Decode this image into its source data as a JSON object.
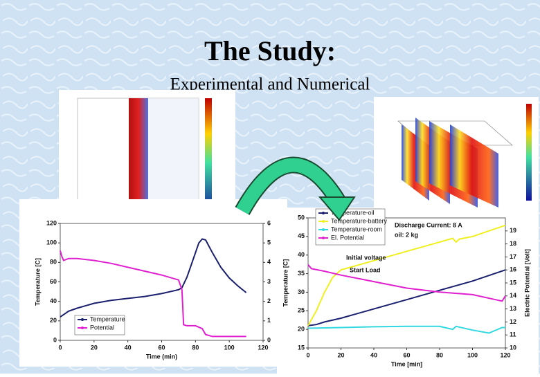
{
  "slide": {
    "title": "The Study:",
    "subtitle": "Experimental and Numerical"
  },
  "chart_data": [
    {
      "type": "line",
      "xlabel": "Time (min)",
      "ylabel": "Temperature [C]",
      "xlim": [
        0,
        120
      ],
      "xticks": [
        0,
        20,
        40,
        60,
        80,
        100,
        120
      ],
      "ylim": [
        0,
        120
      ],
      "yticks": [
        0,
        20,
        40,
        60,
        80,
        100,
        120
      ],
      "y2lim": [
        0,
        6
      ],
      "y2ticks": [
        0,
        1,
        2,
        3,
        4,
        5,
        6
      ],
      "legend": "lower left",
      "series": [
        {
          "name": "Temperature",
          "color": "#1a1f6e",
          "x": [
            0,
            5,
            10,
            20,
            30,
            40,
            50,
            60,
            70,
            72,
            75,
            78,
            82,
            84,
            86,
            90,
            95,
            100,
            105,
            110
          ],
          "values": [
            24,
            30,
            33,
            38,
            41,
            43,
            45,
            48,
            52,
            54,
            65,
            80,
            100,
            104,
            103,
            90,
            75,
            64,
            56,
            49
          ]
        },
        {
          "name": "Potential",
          "color": "#e020d0",
          "axis": "y2",
          "x": [
            0,
            1,
            2,
            5,
            10,
            20,
            30,
            40,
            50,
            60,
            70,
            72,
            73,
            75,
            80,
            84,
            86,
            90,
            100,
            110
          ],
          "values": [
            4.6,
            4.3,
            4.1,
            4.2,
            4.2,
            4.1,
            3.95,
            3.75,
            3.55,
            3.35,
            3.1,
            2.6,
            0.8,
            0.75,
            0.75,
            0.6,
            0.3,
            0.2,
            0.2,
            0.2
          ]
        }
      ]
    },
    {
      "type": "line",
      "xlabel": "Time [min]",
      "ylabel": "Temperature [C]",
      "y2label": "Electric Potential [Volt]",
      "xlim": [
        0,
        120
      ],
      "xticks": [
        0,
        20,
        40,
        60,
        80,
        100,
        120
      ],
      "ylim": [
        15,
        50
      ],
      "yticks": [
        15,
        20,
        25,
        30,
        35,
        40,
        45,
        50
      ],
      "y2lim": [
        10,
        20
      ],
      "y2ticks": [
        10,
        11,
        12,
        13,
        14,
        15,
        16,
        17,
        18,
        19
      ],
      "legend": "upper left",
      "annotations": [
        "Discharge Current: 8 A",
        "oil: 2 kg",
        "Initial voltage",
        "Start Load"
      ],
      "series": [
        {
          "name": "Temperature-oil",
          "color": "#1a1f6e",
          "x": [
            0,
            5,
            10,
            20,
            40,
            60,
            80,
            100,
            120
          ],
          "values": [
            21,
            21.3,
            22,
            23,
            25.5,
            28,
            30.5,
            33,
            36
          ]
        },
        {
          "name": "Temperature-battery",
          "color": "#f0f020",
          "x": [
            0,
            5,
            10,
            15,
            20,
            40,
            60,
            80,
            88,
            90,
            92,
            100,
            120
          ],
          "values": [
            21,
            25,
            30,
            34,
            36,
            38.5,
            41,
            43.5,
            44.5,
            43.5,
            44.3,
            45,
            48
          ]
        },
        {
          "name": "Temperature-room",
          "color": "#30d8e0",
          "x": [
            0,
            20,
            40,
            60,
            80,
            88,
            90,
            100,
            110,
            118,
            120
          ],
          "values": [
            20.3,
            20.5,
            20.7,
            20.8,
            20.8,
            20,
            20.8,
            19.8,
            19,
            20.5,
            20.5
          ]
        },
        {
          "name": "El. Potential",
          "color": "#e020d0",
          "axis": "y2",
          "x": [
            0,
            2,
            10,
            20,
            40,
            60,
            80,
            100,
            118,
            120
          ],
          "values": [
            16.4,
            16.1,
            15.9,
            15.6,
            15.1,
            14.6,
            14.3,
            14.1,
            13.6,
            14.0
          ]
        }
      ]
    }
  ]
}
